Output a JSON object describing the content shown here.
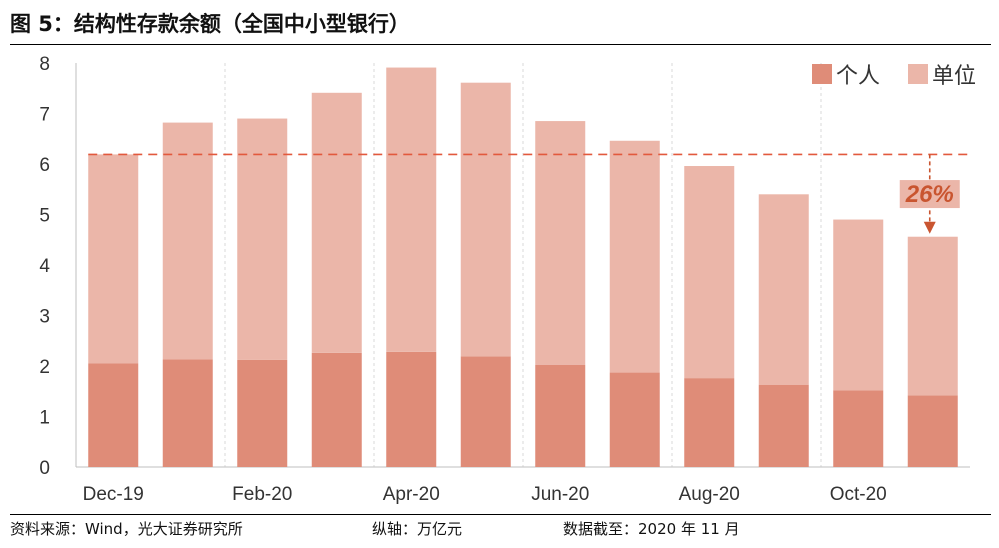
{
  "title": "图 5：结构性存款余额（全国中小型银行）",
  "footer": {
    "source": "资料来源：Wind，光大证券研究所",
    "unit": "纵轴：万亿元",
    "as_of": "数据截至：2020 年 11 月"
  },
  "colors": {
    "individual": "#df8c78",
    "corporate": "#ebb6a9",
    "reference_line": "#e2593d",
    "annotation": "#c95530",
    "grid": "#d9d9d9",
    "axis": "#bfbfbf"
  },
  "chart_data": {
    "type": "bar",
    "stacked": true,
    "categories": [
      "Dec-19",
      "Jan-20",
      "Feb-20",
      "Mar-20",
      "Apr-20",
      "May-20",
      "Jun-20",
      "Jul-20",
      "Aug-20",
      "Sep-20",
      "Oct-20",
      "Nov-20"
    ],
    "category_labels_shown": [
      "Dec-19",
      "Feb-20",
      "Apr-20",
      "Jun-20",
      "Aug-20",
      "Oct-20"
    ],
    "series": [
      {
        "name": "个人",
        "values": [
          2.05,
          2.13,
          2.12,
          2.26,
          2.28,
          2.19,
          2.02,
          1.87,
          1.76,
          1.63,
          1.52,
          1.42
        ]
      },
      {
        "name": "单位",
        "values": [
          4.14,
          4.69,
          4.78,
          5.15,
          5.63,
          5.42,
          4.83,
          4.59,
          4.2,
          3.77,
          3.38,
          3.14
        ]
      }
    ],
    "totals": [
      6.19,
      6.82,
      6.9,
      7.41,
      7.91,
      7.61,
      6.85,
      6.46,
      5.96,
      5.4,
      4.9,
      4.56
    ],
    "ylim": [
      0,
      8
    ],
    "yticks": [
      0,
      1,
      2,
      3,
      4,
      5,
      6,
      7,
      8
    ],
    "xlabel": "",
    "ylabel": "",
    "grid": "vertical",
    "legend": "top-right",
    "reference_line": {
      "value": 6.19,
      "from": "Dec-19",
      "to": "Nov-20",
      "style": "dashed"
    },
    "annotation": {
      "text": "26%",
      "from_value": 6.19,
      "to_value": 4.56,
      "at": "Nov-20"
    }
  }
}
